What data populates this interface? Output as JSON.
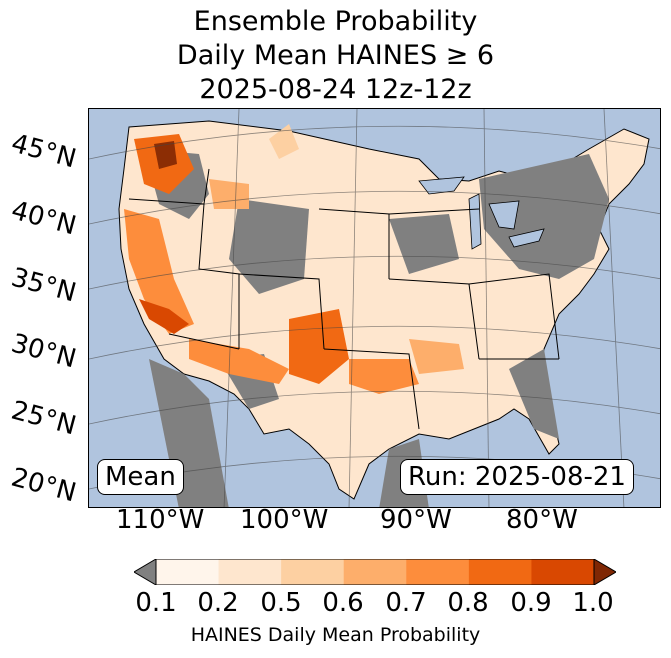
{
  "title": {
    "line1": "Ensemble Probability",
    "line2": "Daily Mean HAINES ≥ 6",
    "line3": "2025-08-24 12z-12z"
  },
  "map": {
    "lat_labels": [
      "45°N",
      "40°N",
      "35°N",
      "30°N",
      "25°N",
      "20°N"
    ],
    "lon_labels": [
      "110°W",
      "100°W",
      "90°W",
      "80°W"
    ],
    "mean_label": "Mean",
    "run_label": "Run: 2025-08-21",
    "colors": {
      "ocean": "#b0c4de",
      "no_data": "#808080",
      "lakes": "#b0c4de"
    }
  },
  "colorbar": {
    "tick_labels": [
      "0.1",
      "0.2",
      "0.5",
      "0.6",
      "0.7",
      "0.8",
      "0.9",
      "1.0"
    ],
    "label": "HAINES Daily Mean Probability",
    "colors": [
      "#fff5eb",
      "#fee6ce",
      "#fdd0a2",
      "#fdae6b",
      "#fd8d3c",
      "#f16913",
      "#d94801",
      "#8c2d04"
    ],
    "under_color": "#808080",
    "over_color": "#7f2704"
  }
}
